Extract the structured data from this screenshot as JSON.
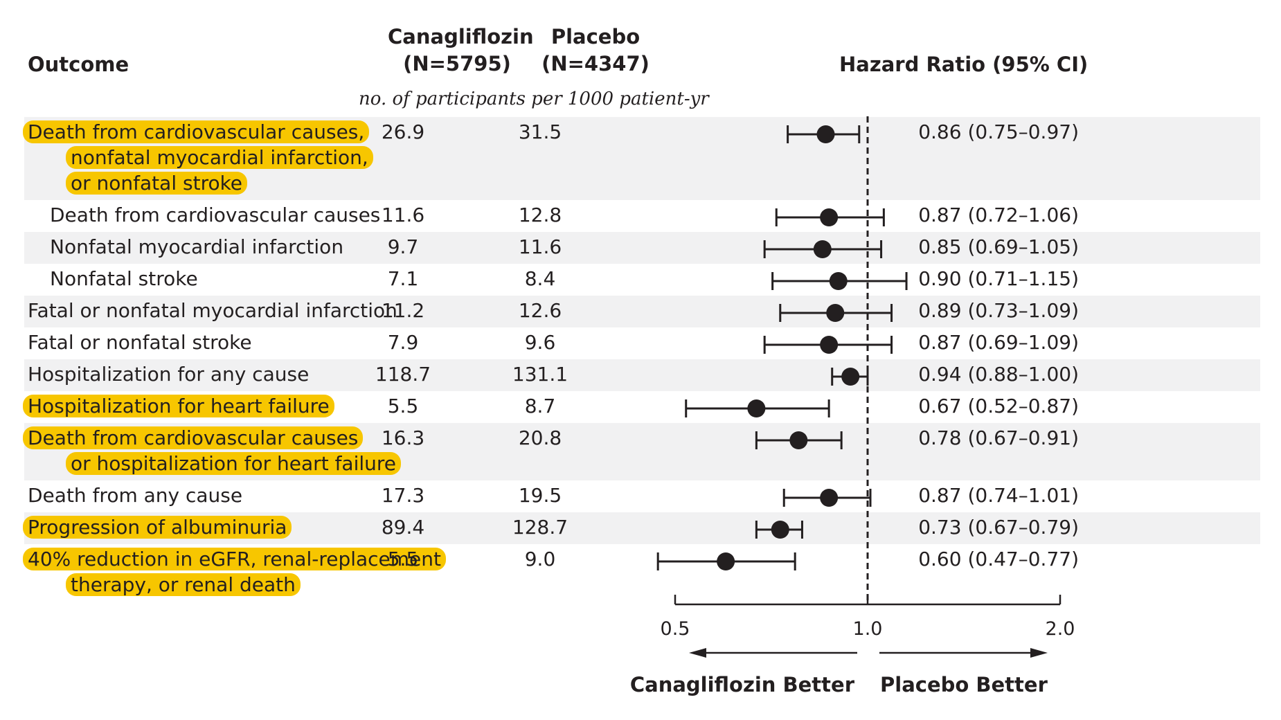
{
  "headers": {
    "outcome": "Outcome",
    "treatment_name": "Canagliflozin",
    "treatment_n": "(N=5795)",
    "control_name": "Placebo",
    "control_n": "(N=4347)",
    "hazard_ratio": "Hazard Ratio (95% CI)",
    "rate_unit": "no. of participants per 1000 patient-yr"
  },
  "colors": {
    "highlight": "#f7c600",
    "band": "#f1f1f2",
    "ink": "#231f20"
  },
  "chart_data": {
    "type": "forest",
    "axis": {
      "scale": "log",
      "ticks": [
        0.5,
        1.0,
        2.0
      ],
      "tick_labels": [
        "0.5",
        "1.0",
        "2.0"
      ],
      "xlim": [
        0.5,
        2.0
      ],
      "reference_line": 1.0,
      "left_label": "Canagliflozin Better",
      "right_label": "Placebo Better"
    },
    "rows": [
      {
        "label_lines": [
          "Death from cardiovascular causes,",
          "nonfatal myocardial infarction,",
          "or nonfatal stroke"
        ],
        "indent": false,
        "highlight": true,
        "shaded": true,
        "canagliflozin": "26.9",
        "placebo": "31.5",
        "hr": 0.86,
        "lo": 0.75,
        "hi": 0.97,
        "hr_text": "0.86 (0.75–0.97)"
      },
      {
        "label_lines": [
          "Death from cardiovascular causes"
        ],
        "indent": true,
        "highlight": false,
        "shaded": false,
        "canagliflozin": "11.6",
        "placebo": "12.8",
        "hr": 0.87,
        "lo": 0.72,
        "hi": 1.06,
        "hr_text": "0.87 (0.72–1.06)"
      },
      {
        "label_lines": [
          "Nonfatal myocardial infarction"
        ],
        "indent": true,
        "highlight": false,
        "shaded": true,
        "canagliflozin": "9.7",
        "placebo": "11.6",
        "hr": 0.85,
        "lo": 0.69,
        "hi": 1.05,
        "hr_text": "0.85 (0.69–1.05)"
      },
      {
        "label_lines": [
          "Nonfatal stroke"
        ],
        "indent": true,
        "highlight": false,
        "shaded": false,
        "canagliflozin": "7.1",
        "placebo": "8.4",
        "hr": 0.9,
        "lo": 0.71,
        "hi": 1.15,
        "hr_text": "0.90 (0.71–1.15)"
      },
      {
        "label_lines": [
          "Fatal or nonfatal myocardial infarction"
        ],
        "indent": false,
        "highlight": false,
        "shaded": true,
        "canagliflozin": "11.2",
        "placebo": "12.6",
        "hr": 0.89,
        "lo": 0.73,
        "hi": 1.09,
        "hr_text": "0.89 (0.73–1.09)"
      },
      {
        "label_lines": [
          "Fatal or nonfatal stroke"
        ],
        "indent": false,
        "highlight": false,
        "shaded": false,
        "canagliflozin": "7.9",
        "placebo": "9.6",
        "hr": 0.87,
        "lo": 0.69,
        "hi": 1.09,
        "hr_text": "0.87 (0.69–1.09)"
      },
      {
        "label_lines": [
          "Hospitalization for any cause"
        ],
        "indent": false,
        "highlight": false,
        "shaded": true,
        "canagliflozin": "118.7",
        "placebo": "131.1",
        "hr": 0.94,
        "lo": 0.88,
        "hi": 1.0,
        "hr_text": "0.94 (0.88–1.00)"
      },
      {
        "label_lines": [
          "Hospitalization for heart failure"
        ],
        "indent": false,
        "highlight": true,
        "shaded": false,
        "canagliflozin": "5.5",
        "placebo": "8.7",
        "hr": 0.67,
        "lo": 0.52,
        "hi": 0.87,
        "hr_text": "0.67 (0.52–0.87)"
      },
      {
        "label_lines": [
          "Death from cardiovascular causes",
          "or hospitalization for heart failure"
        ],
        "indent": false,
        "highlight": true,
        "shaded": true,
        "canagliflozin": "16.3",
        "placebo": "20.8",
        "hr": 0.78,
        "lo": 0.67,
        "hi": 0.91,
        "hr_text": "0.78 (0.67–0.91)"
      },
      {
        "label_lines": [
          "Death from any cause"
        ],
        "indent": false,
        "highlight": false,
        "shaded": false,
        "canagliflozin": "17.3",
        "placebo": "19.5",
        "hr": 0.87,
        "lo": 0.74,
        "hi": 1.01,
        "hr_text": "0.87 (0.74–1.01)"
      },
      {
        "label_lines": [
          "Progression of albuminuria"
        ],
        "indent": false,
        "highlight": true,
        "shaded": true,
        "canagliflozin": "89.4",
        "placebo": "128.7",
        "hr": 0.73,
        "lo": 0.67,
        "hi": 0.79,
        "hr_text": "0.73 (0.67–0.79)"
      },
      {
        "label_lines": [
          "40% reduction in eGFR, renal-replacement",
          "therapy, or renal death"
        ],
        "indent": false,
        "highlight": true,
        "shaded": false,
        "canagliflozin": "5.5",
        "placebo": "9.0",
        "hr": 0.6,
        "lo": 0.47,
        "hi": 0.77,
        "hr_text": "0.60 (0.47–0.77)"
      }
    ]
  }
}
